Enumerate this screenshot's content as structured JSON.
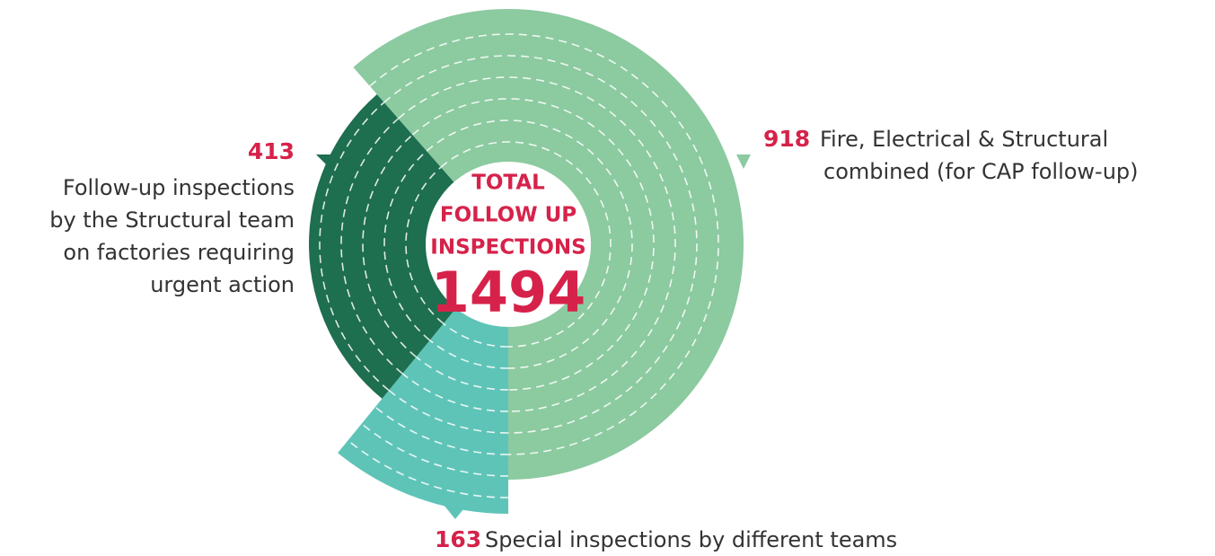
{
  "chart_data": {
    "type": "pie",
    "center_text": [
      "TOTAL",
      "FOLLOW UP",
      "INSPECTIONS"
    ],
    "total": 1494,
    "values": [
      918,
      163,
      413
    ],
    "labels": [
      [
        "Fire, Electrical & Structural",
        "combined (for CAP follow-up)"
      ],
      [
        "Special inspections by different teams"
      ],
      [
        "Follow-up inspections",
        "by the Structural team",
        "on factories requiring",
        "urgent action"
      ]
    ],
    "colors": [
      "#8ccaa0",
      "#5fc4b8",
      "#1e6e50"
    ]
  }
}
